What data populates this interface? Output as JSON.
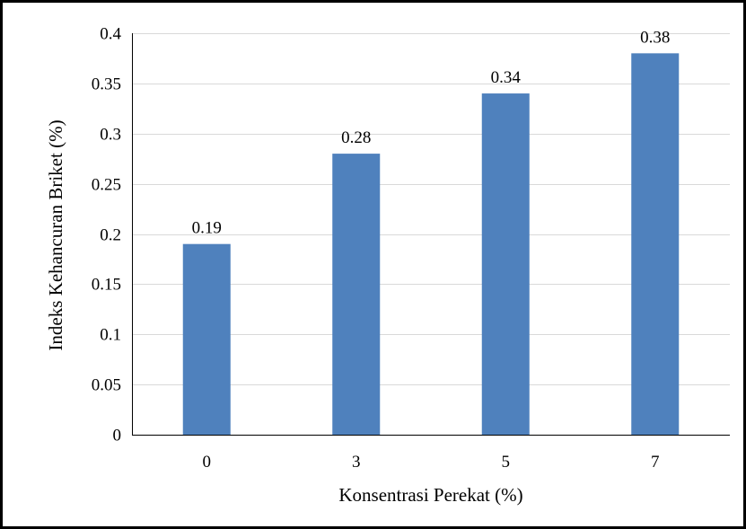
{
  "chart_data": {
    "type": "bar",
    "title": "",
    "xlabel": "Konsentrasi Perekat (%)",
    "ylabel": "Indeks Kehancuran Briket (%)",
    "categories": [
      "0",
      "3",
      "5",
      "7"
    ],
    "values": [
      0.19,
      0.28,
      0.34,
      0.38
    ],
    "data_labels": [
      "0.19",
      "0.28",
      "0.34",
      "0.38"
    ],
    "ylim": [
      0,
      0.4
    ],
    "yticks": [
      0,
      0.05,
      0.1,
      0.15,
      0.2,
      0.25,
      0.3,
      0.35,
      0.4
    ],
    "ytick_labels": [
      "0",
      "0.05",
      "0.1",
      "0.15",
      "0.2",
      "0.25",
      "0.3",
      "0.35",
      "0.4"
    ],
    "grid": true,
    "legend": "none",
    "colors": {
      "bar": "#4f81bd",
      "grid": "#d9d9d9",
      "axis": "#000000"
    }
  }
}
